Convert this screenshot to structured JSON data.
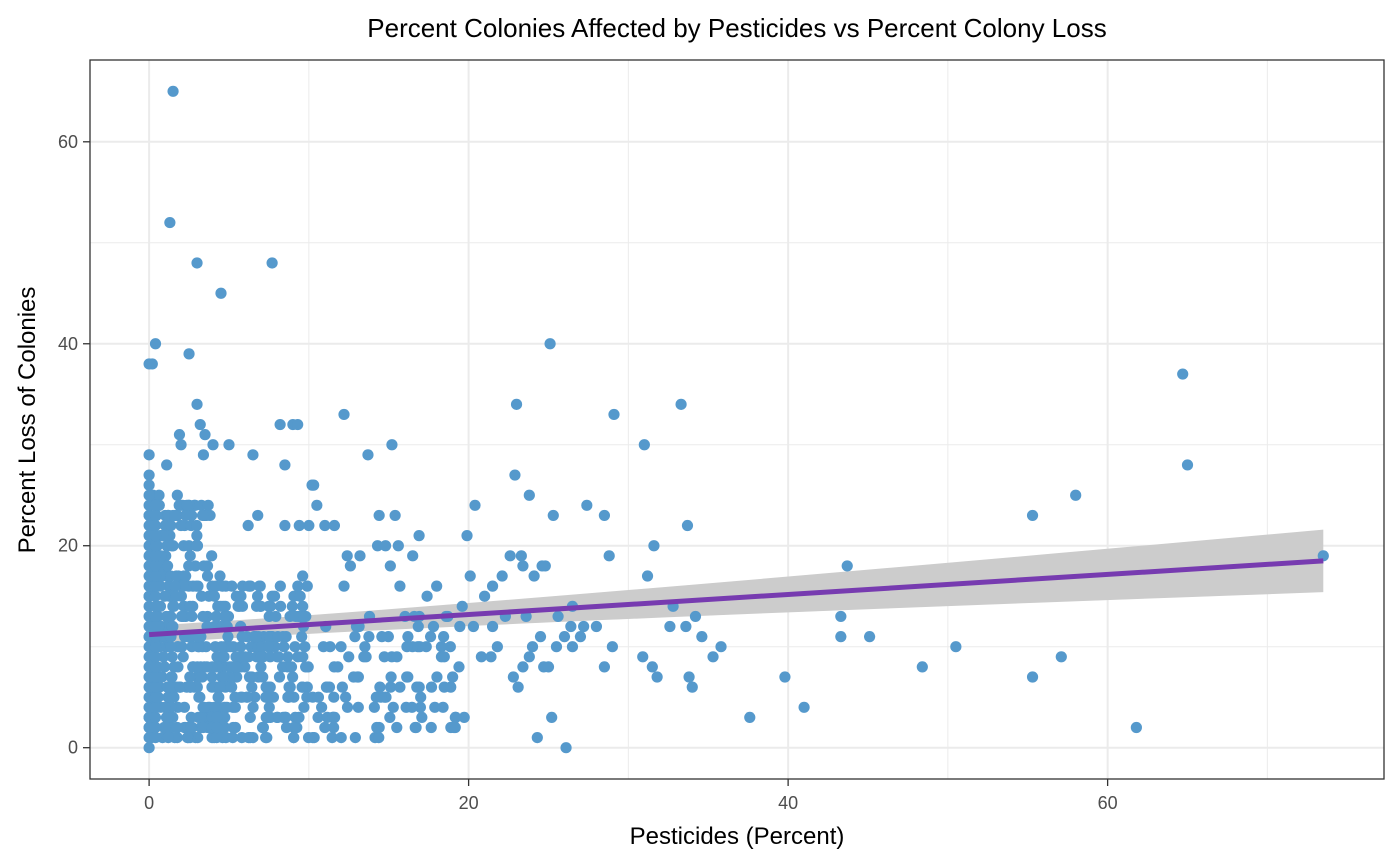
{
  "chart_data": {
    "type": "scatter",
    "title": "Percent Colonies Affected by Pesticides vs Percent Colony Loss",
    "xlabel": "Pesticides (Percent)",
    "ylabel": "Percent Loss of Colonies",
    "xlim": [
      -3.7,
      77.3
    ],
    "ylim": [
      -3.1,
      68.1
    ],
    "x_ticks": [
      0,
      20,
      40,
      60
    ],
    "y_ticks": [
      0,
      20,
      40,
      60
    ],
    "x_minor_ticks": [
      10,
      30,
      50,
      70
    ],
    "y_minor_ticks": [
      10,
      30,
      50
    ],
    "grid": true,
    "colors": {
      "points": "#5599cc",
      "trend_line": "#773bb0",
      "confidence_band": "#cccccc",
      "grid": "#ebebeb",
      "panel_border": "#333333"
    },
    "trend_line": {
      "method": "linear",
      "x_range": [
        0,
        73.5
      ],
      "start_y": 11.2,
      "end_y": 18.5,
      "band_start": [
        10.3,
        12.1
      ],
      "band_end": [
        15.4,
        21.6
      ]
    },
    "outlier_points": [
      [
        1.5,
        65
      ],
      [
        1.3,
        52
      ],
      [
        3.0,
        48
      ],
      [
        7.7,
        48
      ],
      [
        4.5,
        45
      ],
      [
        0.4,
        40
      ],
      [
        0.0,
        38
      ],
      [
        0.2,
        38
      ],
      [
        2.5,
        39
      ],
      [
        3.0,
        34
      ],
      [
        3.2,
        32
      ],
      [
        1.9,
        31
      ],
      [
        3.5,
        31
      ],
      [
        2.0,
        30
      ],
      [
        3.4,
        29
      ],
      [
        4.0,
        30
      ],
      [
        5.0,
        30
      ],
      [
        6.5,
        29
      ],
      [
        8.2,
        32
      ],
      [
        9.0,
        32
      ],
      [
        9.3,
        32
      ],
      [
        12.2,
        33
      ],
      [
        8.5,
        28
      ],
      [
        13.7,
        29
      ],
      [
        15.2,
        30
      ],
      [
        25.1,
        40
      ],
      [
        23.0,
        34
      ],
      [
        29.1,
        33
      ],
      [
        31.0,
        30
      ],
      [
        33.3,
        34
      ],
      [
        22.9,
        27
      ],
      [
        23.8,
        25
      ],
      [
        1.1,
        28
      ],
      [
        0.0,
        29
      ],
      [
        10.2,
        26
      ],
      [
        20.4,
        24
      ],
      [
        25.3,
        23
      ],
      [
        27.4,
        24
      ],
      [
        28.5,
        23
      ],
      [
        28.8,
        19
      ],
      [
        31.2,
        17
      ],
      [
        31.6,
        20
      ],
      [
        33.7,
        22
      ],
      [
        32.8,
        14
      ],
      [
        34.2,
        13
      ],
      [
        34.6,
        11
      ],
      [
        35.3,
        9
      ],
      [
        35.8,
        10
      ],
      [
        43.3,
        13
      ],
      [
        43.7,
        18
      ],
      [
        43.3,
        11
      ],
      [
        45.1,
        11
      ],
      [
        48.4,
        8
      ],
      [
        50.5,
        10
      ],
      [
        55.3,
        23
      ],
      [
        58.0,
        25
      ],
      [
        64.7,
        37
      ],
      [
        65.0,
        28
      ],
      [
        73.5,
        19
      ],
      [
        55.3,
        7
      ],
      [
        57.1,
        9
      ],
      [
        61.8,
        2
      ],
      [
        37.6,
        3
      ],
      [
        39.8,
        7
      ],
      [
        41.0,
        4
      ],
      [
        33.8,
        7
      ],
      [
        34.0,
        6
      ],
      [
        31.8,
        7
      ],
      [
        31.5,
        8
      ],
      [
        30.9,
        9
      ],
      [
        26.1,
        0
      ],
      [
        24.3,
        1
      ],
      [
        25.2,
        3
      ],
      [
        24.7,
        8
      ],
      [
        23.1,
        6
      ],
      [
        26.5,
        14
      ],
      [
        27.0,
        11
      ],
      [
        28.0,
        12
      ],
      [
        28.5,
        8
      ],
      [
        19.9,
        21
      ],
      [
        20.1,
        17
      ],
      [
        21.5,
        16
      ],
      [
        22.1,
        17
      ],
      [
        22.6,
        19
      ],
      [
        23.3,
        19
      ],
      [
        24.1,
        17
      ],
      [
        24.6,
        18
      ],
      [
        24.8,
        18
      ],
      [
        23.4,
        18
      ],
      [
        25.6,
        13
      ],
      [
        26.4,
        12
      ],
      [
        29.0,
        10
      ],
      [
        32.6,
        12
      ],
      [
        33.6,
        12
      ],
      [
        15.7,
        16
      ],
      [
        16.5,
        19
      ],
      [
        16.9,
        21
      ],
      [
        17.4,
        15
      ],
      [
        18.0,
        16
      ],
      [
        14.4,
        23
      ],
      [
        15.4,
        23
      ],
      [
        14.3,
        20
      ],
      [
        14.8,
        20
      ],
      [
        15.1,
        18
      ],
      [
        12.4,
        19
      ],
      [
        11.0,
        22
      ],
      [
        11.6,
        22
      ],
      [
        10.0,
        22
      ],
      [
        8.5,
        22
      ],
      [
        9.4,
        22
      ],
      [
        6.2,
        22
      ],
      [
        6.8,
        23
      ],
      [
        12.2,
        16
      ],
      [
        12.6,
        18
      ],
      [
        13.2,
        19
      ],
      [
        15.6,
        20
      ],
      [
        18.3,
        10
      ],
      [
        19.0,
        7
      ],
      [
        18.4,
        4
      ],
      [
        17.0,
        5
      ],
      [
        15.7,
        6
      ],
      [
        14.5,
        5
      ],
      [
        14.1,
        4
      ],
      [
        11.0,
        2
      ],
      [
        8.6,
        2
      ],
      [
        7.1,
        2
      ],
      [
        5.4,
        2
      ],
      [
        6.5,
        1
      ],
      [
        2.4,
        1
      ],
      [
        1.2,
        1
      ],
      [
        0.0,
        0
      ],
      [
        10.6,
        5
      ],
      [
        10.8,
        4
      ],
      [
        12.8,
        7
      ],
      [
        20.8,
        9
      ],
      [
        21.4,
        9
      ],
      [
        22.8,
        7
      ],
      [
        21.8,
        10
      ],
      [
        22.3,
        13
      ],
      [
        21.0,
        15
      ],
      [
        19.6,
        14
      ],
      [
        18.7,
        13
      ],
      [
        17.8,
        12
      ],
      [
        16.6,
        13
      ],
      [
        16.2,
        11
      ],
      [
        20.3,
        12
      ],
      [
        21.5,
        12
      ],
      [
        23.6,
        13
      ],
      [
        24.0,
        10
      ],
      [
        24.5,
        11
      ],
      [
        25.0,
        8
      ],
      [
        25.5,
        10
      ],
      [
        26.0,
        11
      ],
      [
        26.5,
        10
      ],
      [
        27.2,
        12
      ],
      [
        23.4,
        8
      ],
      [
        23.8,
        9
      ],
      [
        10.5,
        24
      ],
      [
        10.3,
        26
      ]
    ],
    "dense_cluster": {
      "x_range": [
        0,
        20
      ],
      "y_range": [
        1,
        25
      ],
      "count": 620,
      "description": "dense cloud of points near the origin"
    }
  }
}
